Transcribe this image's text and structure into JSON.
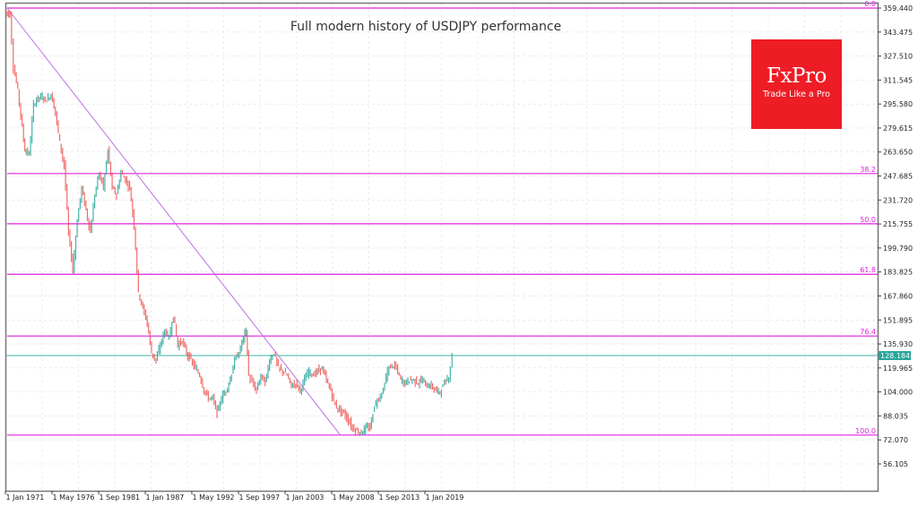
{
  "title": "Full modern history of USDJPY performance",
  "logo": {
    "brand": "FxPro",
    "tagline": "Trade Like a Pro",
    "color": "#ee1c25"
  },
  "colors": {
    "bull": "#26a69a",
    "bear": "#ef5350",
    "fib": "#e020e0",
    "trend": "#c070e0",
    "current_price_line": "#80cbc4",
    "current_price_badge": "#26a69a",
    "grid": "#e0e0e0",
    "frame": "#777777"
  },
  "current_price": "128.184",
  "chart_data": {
    "type": "line",
    "title": "Full modern history of USDJPY performance",
    "xlabel": "",
    "ylabel": "",
    "series_name": "USDJPY",
    "ylim": [
      48,
      366
    ],
    "grid": true,
    "y_ticks": [
      "359.440",
      "343.475",
      "327.510",
      "311.545",
      "295.580",
      "279.615",
      "263.650",
      "247.685",
      "231.720",
      "215.755",
      "199.790",
      "183.825",
      "167.860",
      "151.895",
      "135.930",
      "119.965",
      "104.000",
      "88.035",
      "72.070",
      "56.105"
    ],
    "x_ticks": [
      "1 Jan 1971",
      "1 May 1976",
      "1 Sep 1981",
      "1 Jan 1987",
      "1 May 1992",
      "1 Sep 1997",
      "1 Jan 2003",
      "1 May 2008",
      "1 Sep 2013",
      "1 Jan 2019"
    ],
    "x": [
      1971.0,
      1971.6,
      1972.0,
      1972.5,
      1973.0,
      1973.3,
      1973.8,
      1974.3,
      1974.8,
      1975.3,
      1975.8,
      1976.3,
      1976.8,
      1977.3,
      1977.8,
      1978.3,
      1978.8,
      1979.3,
      1979.8,
      1980.3,
      1980.8,
      1981.3,
      1981.8,
      1982.3,
      1982.8,
      1983.3,
      1983.8,
      1984.3,
      1984.8,
      1985.3,
      1985.8,
      1986.3,
      1986.8,
      1987.3,
      1987.8,
      1988.3,
      1988.8,
      1989.3,
      1989.8,
      1990.3,
      1990.8,
      1991.3,
      1991.8,
      1992.3,
      1992.8,
      1993.3,
      1993.8,
      1994.3,
      1994.8,
      1995.3,
      1995.8,
      1996.3,
      1996.8,
      1997.3,
      1997.8,
      1998.3,
      1998.6,
      1998.9,
      1999.3,
      1999.8,
      2000.3,
      2000.8,
      2001.3,
      2001.8,
      2002.3,
      2002.8,
      2003.3,
      2003.8,
      2004.3,
      2004.8,
      2005.3,
      2005.8,
      2006.3,
      2006.8,
      2007.3,
      2007.8,
      2008.3,
      2008.8,
      2009.3,
      2009.8,
      2010.3,
      2010.8,
      2011.3,
      2011.8,
      2012.3,
      2012.8,
      2013.3,
      2013.8,
      2014.3,
      2014.8,
      2015.3,
      2015.8,
      2016.3,
      2016.8,
      2017.3,
      2017.8,
      2018.3,
      2018.8,
      2019.3,
      2019.8,
      2020.3,
      2020.8,
      2021.3,
      2021.8,
      2022.2
    ],
    "values": [
      358,
      355,
      320,
      305,
      280,
      265,
      262,
      295,
      300,
      300,
      298,
      302,
      290,
      270,
      255,
      210,
      185,
      218,
      240,
      225,
      210,
      235,
      250,
      240,
      265,
      240,
      235,
      250,
      245,
      240,
      215,
      170,
      160,
      150,
      130,
      125,
      135,
      145,
      140,
      155,
      135,
      138,
      130,
      125,
      120,
      115,
      105,
      100,
      100,
      90,
      100,
      105,
      112,
      125,
      130,
      140,
      145,
      115,
      110,
      105,
      115,
      110,
      125,
      130,
      120,
      118,
      115,
      108,
      110,
      105,
      112,
      118,
      115,
      118,
      120,
      112,
      105,
      95,
      92,
      90,
      85,
      80,
      78,
      77,
      80,
      80,
      95,
      100,
      105,
      118,
      122,
      120,
      112,
      110,
      112,
      112,
      110,
      112,
      108,
      108,
      105,
      104,
      110,
      114,
      128
    ],
    "fibonacci": {
      "levels": [
        {
          "label": "0.0",
          "price": 359.44
        },
        {
          "label": "38.2",
          "price": 249.3
        },
        {
          "label": "50.0",
          "price": 215.9
        },
        {
          "label": "61.8",
          "price": 182.3
        },
        {
          "label": "76.4",
          "price": 141.2
        },
        {
          "label": "100.0",
          "price": 75.3
        }
      ]
    },
    "trendline": {
      "from": {
        "x": 1971.0,
        "y": 359.44
      },
      "to": {
        "x": 2008.3,
        "y": 75.3
      }
    },
    "current_price": 128.184,
    "legend": "none"
  }
}
